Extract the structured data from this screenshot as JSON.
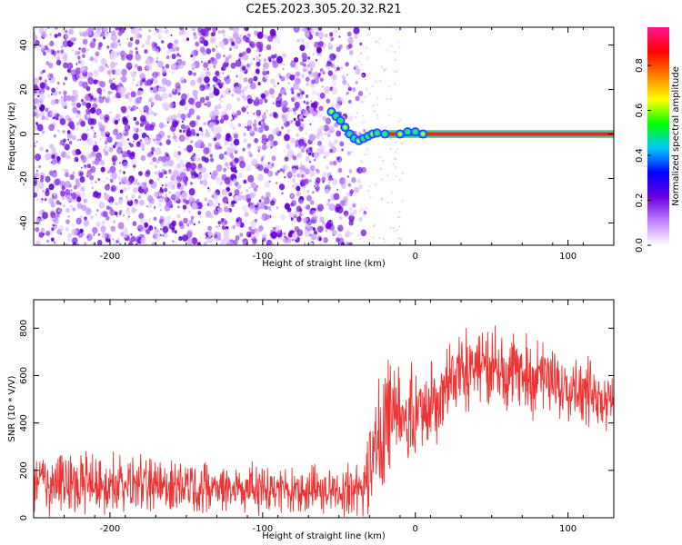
{
  "title": "C2E5.2023.305.20.32.R21",
  "chart_data": [
    {
      "type": "heatmap",
      "xlabel": "Height of straight line (km)",
      "ylabel": "Frequency (Hz)",
      "xlim": [
        -250,
        130
      ],
      "ylim": [
        -50,
        48
      ],
      "xticks": [
        -200,
        -100,
        0,
        100
      ],
      "yticks": [
        -40,
        -20,
        0,
        20,
        40
      ],
      "colorbar": {
        "label": "Normalized spectral amplitude",
        "range": [
          0,
          0.97
        ],
        "ticks": [
          0.0,
          0.2,
          0.4,
          0.6,
          0.8
        ],
        "colors": [
          "#ffffff",
          "#c080ff",
          "#6a00e0",
          "#0000ff",
          "#00c8ff",
          "#00ff00",
          "#ffff00",
          "#ff8000",
          "#ff0000",
          "#ff1493"
        ]
      },
      "features": {
        "noise_region_x": [
          -250,
          -33
        ],
        "trace_points": [
          [
            -55,
            10
          ],
          [
            -52,
            8
          ],
          [
            -49,
            6
          ],
          [
            -46,
            3
          ],
          [
            -43,
            0
          ],
          [
            -40,
            -2
          ],
          [
            -37,
            -3
          ],
          [
            -34,
            -2
          ],
          [
            -31,
            -1
          ],
          [
            -28,
            0
          ],
          [
            -25,
            0.5
          ],
          [
            -20,
            0
          ],
          [
            -10,
            0
          ],
          [
            -5,
            1
          ],
          [
            0,
            1
          ],
          [
            5,
            0
          ]
        ],
        "carrier_line": {
          "x": [
            -20,
            130
          ],
          "y": 0
        }
      },
      "grid": false
    },
    {
      "type": "line",
      "xlabel": "Height of straight line (km)",
      "ylabel": "SNR (10 * V/V)",
      "xlim": [
        -250,
        130
      ],
      "ylim": [
        0,
        920
      ],
      "xticks": [
        -200,
        -100,
        0,
        100
      ],
      "yticks": [
        0,
        200,
        400,
        600,
        800
      ],
      "color": "#ee3333",
      "envelope": {
        "x": [
          -250,
          -220,
          -200,
          -150,
          -100,
          -50,
          -35,
          -30,
          -20,
          -10,
          0,
          10,
          20,
          30,
          40,
          50,
          60,
          70,
          80,
          90,
          100,
          110,
          120,
          130
        ],
        "mean": [
          150,
          145,
          145,
          140,
          120,
          110,
          120,
          200,
          420,
          450,
          420,
          480,
          580,
          620,
          650,
          640,
          620,
          610,
          590,
          570,
          560,
          540,
          520,
          500
        ],
        "spread": [
          120,
          120,
          110,
          100,
          95,
          90,
          100,
          180,
          250,
          200,
          180,
          170,
          160,
          150,
          160,
          150,
          150,
          140,
          150,
          140,
          130,
          130,
          130,
          120
        ]
      },
      "grid": false
    }
  ]
}
